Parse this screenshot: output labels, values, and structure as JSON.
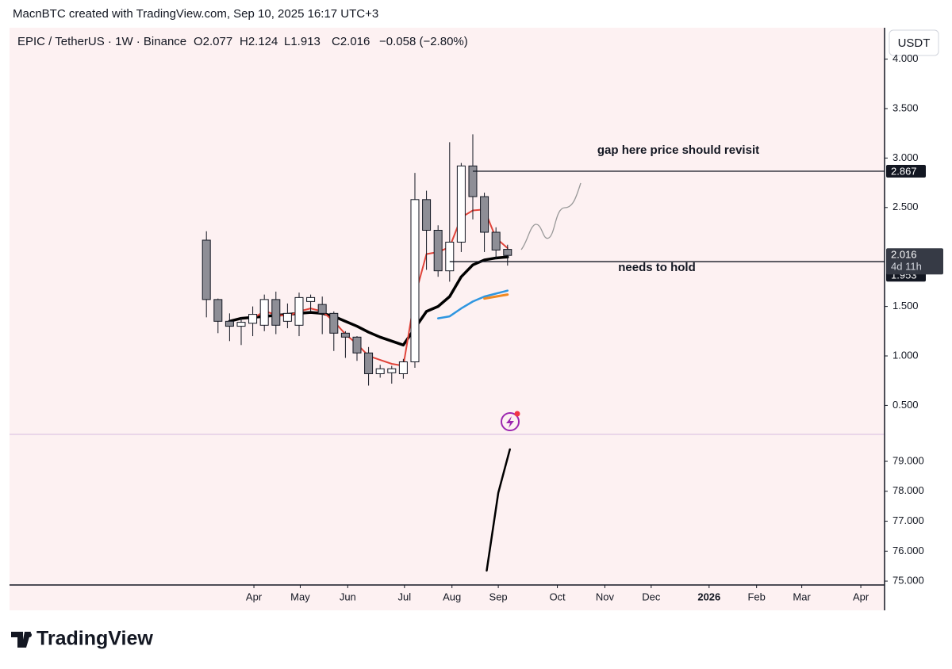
{
  "header": {
    "text": "MacnBTC created with TradingView.com, Sep 10, 2025 16:17 UTC+3"
  },
  "footer": {
    "brand": "TradingView"
  },
  "chart_data": {
    "type": "candlestick",
    "title": "EPIC / TetherUS · 1W · Binance",
    "ohlc_labels": [
      "O2.077",
      "H2.124",
      "L1.913",
      "C2.016",
      "−0.058 (−2.80%)"
    ],
    "currency": "USDT",
    "x": [
      0,
      1,
      2,
      3,
      4,
      5,
      6,
      7,
      8,
      9,
      10,
      11,
      12,
      13,
      14,
      15,
      16,
      17,
      18,
      19,
      20,
      21,
      22,
      23,
      24,
      25,
      26
    ],
    "open": [
      2.17,
      1.57,
      1.35,
      1.3,
      1.33,
      1.31,
      1.57,
      1.35,
      1.31,
      1.55,
      1.52,
      1.43,
      1.23,
      1.19,
      1.03,
      0.82,
      0.83,
      0.82,
      0.94,
      2.58,
      2.27,
      1.86,
      2.15,
      2.92,
      2.61,
      2.25,
      2.077
    ],
    "high": [
      2.26,
      1.58,
      1.43,
      1.39,
      1.5,
      1.62,
      1.65,
      1.53,
      1.64,
      1.62,
      1.6,
      1.45,
      1.25,
      1.2,
      1.09,
      0.91,
      0.9,
      0.97,
      2.85,
      2.67,
      2.32,
      3.16,
      2.95,
      3.24,
      2.65,
      2.3,
      2.124
    ],
    "low": [
      1.39,
      1.23,
      1.15,
      1.11,
      1.2,
      1.25,
      1.22,
      1.28,
      1.2,
      1.45,
      1.22,
      1.05,
      0.98,
      0.95,
      0.7,
      0.78,
      0.72,
      0.77,
      0.88,
      1.87,
      1.8,
      1.75,
      2.05,
      2.38,
      2.05,
      1.98,
      1.913
    ],
    "close": [
      1.57,
      1.35,
      1.3,
      1.34,
      1.42,
      1.57,
      1.31,
      1.43,
      1.59,
      1.59,
      1.43,
      1.23,
      1.19,
      1.03,
      0.82,
      0.87,
      0.87,
      0.94,
      2.58,
      2.27,
      1.86,
      2.15,
      2.92,
      2.61,
      2.25,
      2.07,
      2.016
    ],
    "up_color": "#ffffff",
    "down_color": "#8e8e96",
    "series": [
      {
        "color": "#000000",
        "width": 3.5,
        "values": [
          null,
          null,
          1.35,
          1.38,
          1.39,
          1.4,
          1.41,
          1.42,
          1.43,
          1.44,
          1.43,
          1.4,
          1.35,
          1.3,
          1.24,
          1.19,
          1.15,
          1.11,
          1.28,
          1.45,
          1.5,
          1.6,
          1.8,
          1.92,
          1.97,
          1.99,
          2.0
        ]
      },
      {
        "color": "#e0443a",
        "width": 2,
        "values": [
          null,
          null,
          null,
          null,
          1.38,
          1.45,
          1.42,
          1.4,
          1.45,
          1.48,
          1.45,
          1.35,
          1.22,
          1.12,
          1.0,
          0.96,
          0.92,
          0.9,
          1.6,
          2.03,
          2.05,
          2.1,
          2.4,
          2.47,
          2.48,
          2.19,
          2.09
        ]
      },
      {
        "color": "#2f96e0",
        "width": 2.5,
        "values": [
          null,
          null,
          null,
          null,
          null,
          null,
          null,
          null,
          null,
          null,
          null,
          null,
          null,
          null,
          null,
          null,
          null,
          null,
          null,
          null,
          1.38,
          1.4,
          1.48,
          1.55,
          1.6,
          1.63,
          1.66
        ]
      },
      {
        "color": "#f08a24",
        "width": 3,
        "values": [
          null,
          null,
          null,
          null,
          null,
          null,
          null,
          null,
          null,
          null,
          null,
          null,
          null,
          null,
          null,
          null,
          null,
          null,
          null,
          null,
          null,
          null,
          null,
          null,
          1.58,
          1.6,
          1.62
        ]
      }
    ],
    "xlim": [
      -17,
      58.55
    ],
    "xticks": [
      {
        "value": 4.1,
        "label": "Apr"
      },
      {
        "value": 8.1,
        "label": "May"
      },
      {
        "value": 12.2,
        "label": "Jun"
      },
      {
        "value": 17.1,
        "label": "Jul"
      },
      {
        "value": 21.2,
        "label": "Aug"
      },
      {
        "value": 25.2,
        "label": "Sep"
      },
      {
        "value": 30.3,
        "label": "Oct"
      },
      {
        "value": 34.4,
        "label": "Nov"
      },
      {
        "value": 38.4,
        "label": "Dec"
      },
      {
        "value": 43.4,
        "label": "2026"
      },
      {
        "value": 47.5,
        "label": "Feb"
      },
      {
        "value": 51.4,
        "label": "Mar"
      },
      {
        "value": 56.5,
        "label": "Apr"
      }
    ],
    "ylim": [
      0.207,
      4.317
    ],
    "yticks": [
      {
        "value": 0.5,
        "label": "0.500"
      },
      {
        "value": 1,
        "label": "1.000"
      },
      {
        "value": 1.5,
        "label": "1.500"
      },
      {
        "value": 2.5,
        "label": "2.500"
      },
      {
        "value": 3,
        "label": "3.000"
      },
      {
        "value": 3.5,
        "label": "3.500"
      },
      {
        "value": 4,
        "label": "4.000"
      }
    ],
    "horizontal_lines": [
      2.867,
      1.953
    ],
    "countdown": "4d 11h",
    "annotations": [
      "gap here price should revisit",
      "needs to hold"
    ],
    "indicator": {
      "type": "line",
      "color": "#000000",
      "x": [
        24.2,
        25.2,
        26.2
      ],
      "values": [
        75.35,
        77.95,
        79.4
      ],
      "ylim": [
        74.87,
        79.9
      ],
      "yticks": [
        {
          "value": 75,
          "label": "75.000"
        },
        {
          "value": 76,
          "label": "76.000"
        },
        {
          "value": 77,
          "label": "77.000"
        },
        {
          "value": 78,
          "label": "78.000"
        },
        {
          "value": 79,
          "label": "79.000"
        }
      ]
    }
  }
}
